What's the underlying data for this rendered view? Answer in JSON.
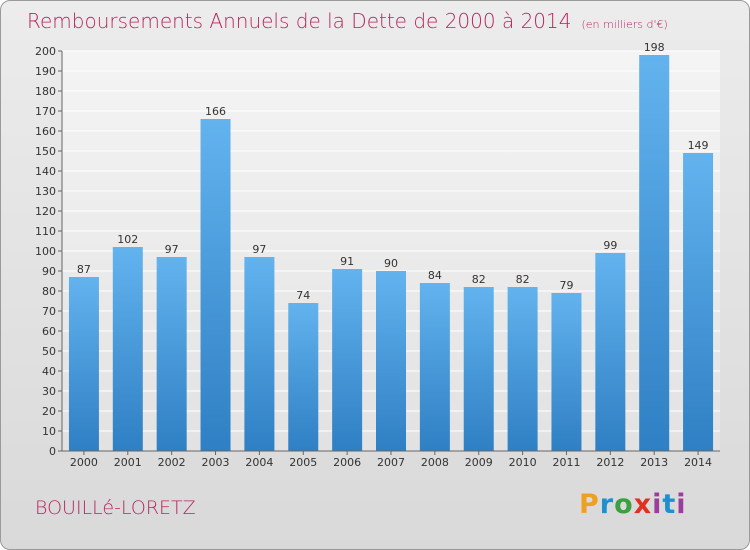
{
  "header": {
    "title": "Remboursements Annuels de la Dette de 2000 à 2014",
    "unit": "(en milliers d'€)"
  },
  "commune": "BOUILLé-LORETZ",
  "brand": {
    "letters": [
      "P",
      "r",
      "o",
      "x",
      "i",
      "t",
      "i"
    ],
    "colors": [
      "#f0a020",
      "#1e90d0",
      "#3aa040",
      "#e03020",
      "#9c3d9c",
      "#1e90d0",
      "#9c3d9c"
    ]
  },
  "chart_data": {
    "type": "bar",
    "title": "Remboursements Annuels de la Dette de 2000 à 2014",
    "xlabel": "",
    "ylabel": "",
    "categories": [
      "2000",
      "2001",
      "2002",
      "2003",
      "2004",
      "2005",
      "2006",
      "2007",
      "2008",
      "2009",
      "2010",
      "2011",
      "2012",
      "2013",
      "2014"
    ],
    "values": [
      87,
      102,
      97,
      166,
      97,
      74,
      91,
      90,
      84,
      82,
      82,
      79,
      99,
      198,
      149
    ],
    "ylim": [
      0,
      200
    ],
    "yticks": [
      0,
      10,
      20,
      30,
      40,
      50,
      60,
      70,
      80,
      90,
      100,
      110,
      120,
      130,
      140,
      150,
      160,
      170,
      180,
      190,
      200
    ],
    "grid": true,
    "bar_color": "#4a9fe0"
  }
}
